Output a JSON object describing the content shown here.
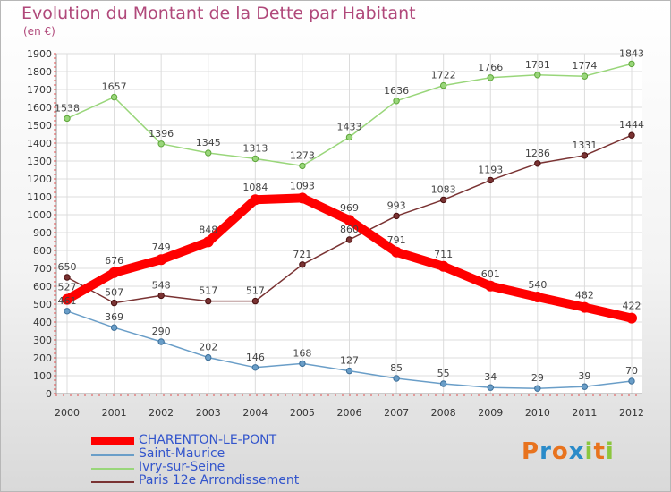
{
  "title": "Evolution du Montant de la Dette par Habitant",
  "subtitle": "(en €)",
  "logo": {
    "text": "Proxiti",
    "colors": [
      "#e8731e",
      "#2a8bc9",
      "#e8731e",
      "#2a8bc9",
      "#8cc63f",
      "#e8731e",
      "#8cc63f"
    ]
  },
  "chart_data": {
    "type": "line",
    "x": [
      "2000",
      "2001",
      "2002",
      "2003",
      "2004",
      "2005",
      "2006",
      "2007",
      "2008",
      "2009",
      "2010",
      "2011",
      "2012"
    ],
    "ylim": [
      0,
      1900
    ],
    "yticks": [
      0,
      100,
      200,
      300,
      400,
      500,
      600,
      700,
      800,
      900,
      1000,
      1100,
      1200,
      1300,
      1400,
      1500,
      1600,
      1700,
      1800,
      1900
    ],
    "grid": true,
    "legend_position": "bottom-left",
    "series": [
      {
        "name": "CHARENTON-LE-PONT",
        "color": "#ff0000",
        "bold": true,
        "values": [
          527,
          676,
          749,
          848,
          1084,
          1093,
          969,
          791,
          711,
          601,
          540,
          482,
          422
        ]
      },
      {
        "name": "Saint-Maurice",
        "color": "#6a9ec8",
        "bold": false,
        "values": [
          461,
          369,
          290,
          202,
          146,
          168,
          127,
          85,
          55,
          34,
          29,
          39,
          70
        ]
      },
      {
        "name": "Ivry-sur-Seine",
        "color": "#99d67a",
        "bold": false,
        "values": [
          1538,
          1657,
          1396,
          1345,
          1313,
          1273,
          1433,
          1636,
          1722,
          1766,
          1781,
          1774,
          1843
        ]
      },
      {
        "name": "Paris 12e  Arrondissement",
        "color": "#7a3333",
        "bold": false,
        "values": [
          650,
          507,
          548,
          517,
          517,
          721,
          860,
          993,
          1083,
          1193,
          1286,
          1331,
          1444
        ]
      }
    ]
  }
}
